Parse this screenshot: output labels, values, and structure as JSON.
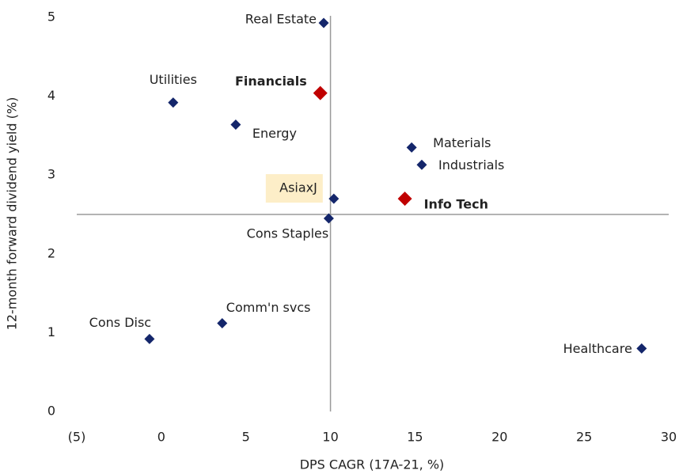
{
  "chart_data": {
    "type": "scatter",
    "x_label": "DPS CAGR (17A-21, %)",
    "y_label": "12-month forward dividend yield (%)",
    "labels": [
      "Real Estate",
      "Utilities",
      "Financials",
      "Energy",
      "Materials",
      "Industrials",
      "AsiaxJ",
      "Info Tech",
      "Cons Staples",
      "Comm'n svcs",
      "Cons Disc",
      "Healthcare"
    ],
    "x": [
      9.6,
      0.7,
      9.4,
      4.4,
      14.8,
      15.4,
      10.2,
      14.4,
      9.9,
      3.6,
      -0.7,
      28.4
    ],
    "y": [
      4.93,
      3.92,
      4.04,
      3.64,
      3.35,
      3.13,
      2.7,
      2.7,
      2.45,
      1.12,
      0.92,
      0.8
    ],
    "colors": [
      "#14266b",
      "#14266b",
      "#c00000",
      "#14266b",
      "#14266b",
      "#14266b",
      "#14266b",
      "#c00000",
      "#14266b",
      "#14266b",
      "#14266b",
      "#14266b"
    ],
    "highlight": [
      false,
      false,
      true,
      false,
      false,
      false,
      false,
      true,
      false,
      false,
      false,
      false
    ],
    "xlim": [
      -5,
      30
    ],
    "ylim": [
      0,
      5
    ],
    "xticks": [
      {
        "value": -5,
        "label": "(5)"
      },
      0,
      5,
      10,
      15,
      20,
      25,
      30
    ],
    "yticks": [
      0,
      1,
      2,
      3,
      4,
      5
    ],
    "reference_lines": {
      "x": 10,
      "y": 2.5
    }
  }
}
